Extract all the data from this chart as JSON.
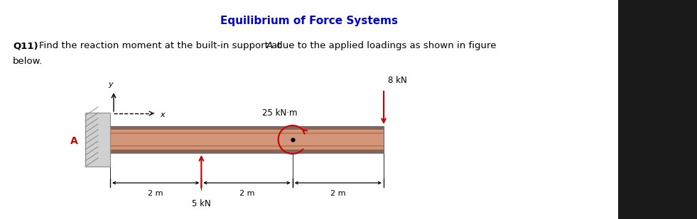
{
  "title": "Equilibrium of Force Systems",
  "title_color": "#0000CC",
  "title_fontsize": 11,
  "background_color": "#ffffff",
  "dark_right_color": "#1a1a1a",
  "beam_color_main": "#d4967a",
  "beam_color_dark": "#8B6355",
  "beam_color_mid_line": "#b07050",
  "wall_color": "#c8c8c8",
  "wall_hatch_color": "#888888",
  "arrow_color": "#cc0000",
  "label_A": "A",
  "label_5kN": "5 kN",
  "label_8kN": "8 kN",
  "label_25kNm": "25 kN·m",
  "label_2m": "2 m",
  "label_x": "x",
  "label_y": "y"
}
